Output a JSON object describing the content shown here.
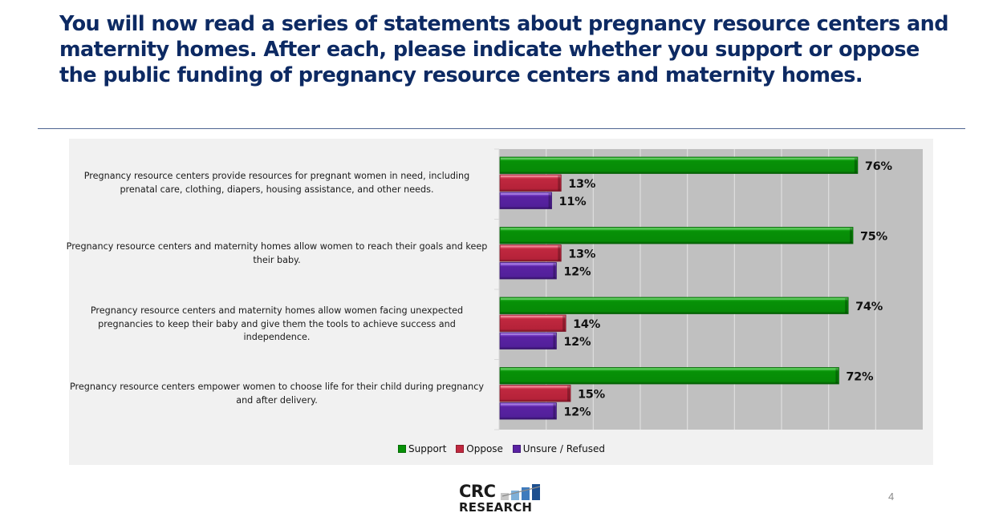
{
  "slide": {
    "title": "You will now read a series of statements about pregnancy resource centers and maternity homes. After each, please indicate whether you support or oppose the public funding of pregnancy resource centers and maternity homes.",
    "page_number": "4",
    "logo": {
      "line1": "CRC",
      "line2": "RESEARCH"
    }
  },
  "colors": {
    "support": "#079107",
    "oppose": "#c0283f",
    "unsure": "#5a22a3",
    "title": "#0d2a63",
    "plot_bg": "#c0c0c0",
    "panel_bg": "#f1f1f1"
  },
  "chart_data": {
    "type": "bar",
    "orientation": "horizontal",
    "title": "",
    "xlabel": "",
    "ylabel": "",
    "xlim": [
      0,
      90
    ],
    "grid": true,
    "legend_position": "bottom",
    "categories": [
      "Pregnancy resource centers provide resources for pregnant women in need, including prenatal care, clothing, diapers, housing assistance, and other needs.",
      "Pregnancy resource centers and maternity homes allow women to reach their goals and keep their baby.",
      "Pregnancy resource centers and maternity homes allow women facing unexpected pregnancies to keep their baby and give them the tools to achieve success and independence.",
      "Pregnancy resource centers empower women to choose life for their child during pregnancy and after delivery."
    ],
    "series": [
      {
        "name": "Support",
        "values": [
          76,
          75,
          74,
          72
        ],
        "labels": [
          "76%",
          "75%",
          "74%",
          "72%"
        ]
      },
      {
        "name": "Oppose",
        "values": [
          13,
          13,
          14,
          15
        ],
        "labels": [
          "13%",
          "13%",
          "14%",
          "15%"
        ]
      },
      {
        "name": "Unsure / Refused",
        "values": [
          11,
          12,
          12,
          12
        ],
        "labels": [
          "11%",
          "12%",
          "12%",
          "12%"
        ]
      }
    ]
  }
}
